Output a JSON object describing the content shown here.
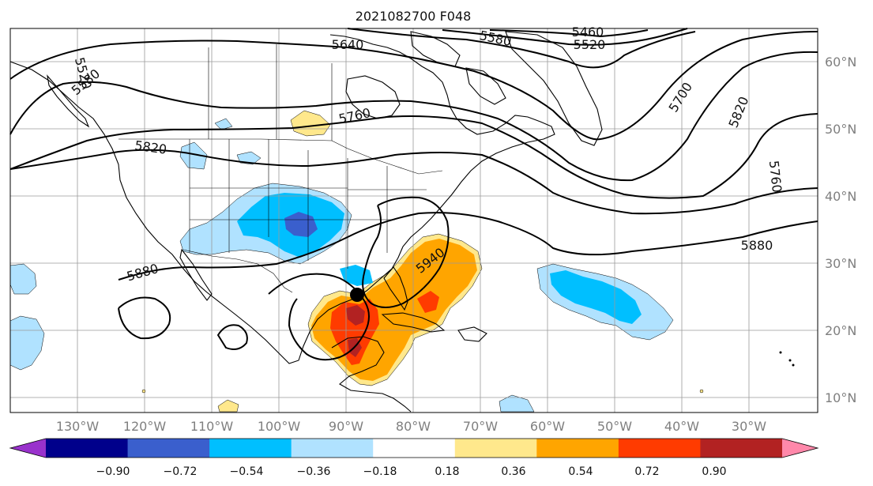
{
  "title": "2021082700 F048",
  "lon_labels": [
    "130°W",
    "120°W",
    "110°W",
    "100°W",
    "90°W",
    "80°W",
    "70°W",
    "60°W",
    "50°W",
    "40°W",
    "30°W"
  ],
  "lat_labels": [
    "60°N",
    "50°N",
    "40°N",
    "30°N",
    "20°N",
    "10°N"
  ],
  "contour_labels": [
    "5640",
    "5580",
    "5460",
    "5520",
    "5520",
    "5580",
    "5760",
    "5700",
    "5820",
    "5820",
    "5760",
    "5880",
    "5880",
    "5940"
  ],
  "colorbar": {
    "tick_labels": [
      "−0.90",
      "−0.72",
      "−0.54",
      "−0.36",
      "−0.18",
      "0.18",
      "0.36",
      "0.54",
      "0.72",
      "0.90"
    ],
    "colors": [
      "#9932cc",
      "#00008b",
      "#3a5fcd",
      "#00bfff",
      "#b0e2ff",
      "#ffffff",
      "#ffe88c",
      "#ffa500",
      "#ff3b00",
      "#b22222",
      "#ff88aa"
    ]
  },
  "marker": {
    "name": "storm-center-marker",
    "lon": -88.5,
    "lat": 25.5
  }
}
